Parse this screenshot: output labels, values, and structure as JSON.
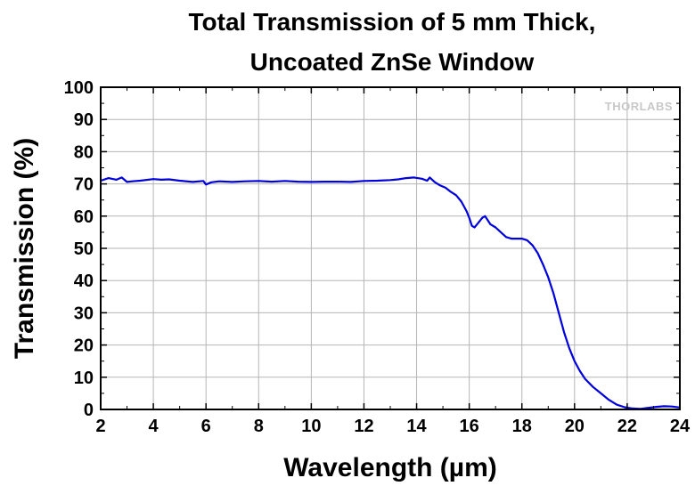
{
  "chart_data": {
    "type": "line",
    "title_line1": "Total Transmission of 5 mm Thick,",
    "title_line2": "Uncoated ZnSe Window",
    "xlabel": "Wavelength (µm)",
    "ylabel": "Transmission (%)",
    "xlim": [
      2,
      24
    ],
    "ylim": [
      0,
      100
    ],
    "x_ticks": [
      2,
      4,
      6,
      8,
      10,
      12,
      14,
      16,
      18,
      20,
      22,
      24
    ],
    "y_ticks": [
      0,
      10,
      20,
      30,
      40,
      50,
      60,
      70,
      80,
      90,
      100
    ],
    "grid": true,
    "line_color": "#0000dd",
    "watermark": "THORLABS",
    "series": [
      {
        "x": [
          2.0,
          2.3,
          2.6,
          2.8,
          3.0,
          3.2,
          3.5,
          4.0,
          4.3,
          4.6,
          5.0,
          5.5,
          5.9,
          6.0,
          6.2,
          6.5,
          7.0,
          7.5,
          8.0,
          8.5,
          9.0,
          9.5,
          10.0,
          10.5,
          11.0,
          11.5,
          12.0,
          12.5,
          13.0,
          13.3,
          13.6,
          13.9,
          14.2,
          14.4,
          14.5,
          14.7,
          14.9,
          15.1,
          15.3,
          15.5,
          15.7,
          15.9,
          16.0,
          16.1,
          16.2,
          16.3,
          16.5,
          16.6,
          16.8,
          17.0,
          17.2,
          17.4,
          17.6,
          17.8,
          18.0,
          18.2,
          18.4,
          18.6,
          18.8,
          19.0,
          19.2,
          19.4,
          19.6,
          19.8,
          20.0,
          20.2,
          20.4,
          20.7,
          21.0,
          21.3,
          21.6,
          21.9,
          22.2,
          22.5,
          22.8,
          23.1,
          23.4,
          23.7,
          24.0
        ],
        "y": [
          71.0,
          71.8,
          71.3,
          72.0,
          70.6,
          70.8,
          71.0,
          71.5,
          71.3,
          71.4,
          71.0,
          70.6,
          70.9,
          69.8,
          70.5,
          70.8,
          70.6,
          70.8,
          70.9,
          70.7,
          70.9,
          70.7,
          70.6,
          70.7,
          70.7,
          70.6,
          70.9,
          71.0,
          71.2,
          71.4,
          71.8,
          72.0,
          71.6,
          71.0,
          72.0,
          70.5,
          69.5,
          68.8,
          67.5,
          66.5,
          64.5,
          61.5,
          59.5,
          57.0,
          56.5,
          57.5,
          59.5,
          60.0,
          57.5,
          56.5,
          55.0,
          53.5,
          53.0,
          53.0,
          53.0,
          52.5,
          51.0,
          48.5,
          45.0,
          41.0,
          36.0,
          30.0,
          24.0,
          19.0,
          15.0,
          12.0,
          9.5,
          7.0,
          5.0,
          3.0,
          1.5,
          0.7,
          0.3,
          0.2,
          0.5,
          0.8,
          1.0,
          0.9,
          0.6
        ]
      }
    ]
  }
}
